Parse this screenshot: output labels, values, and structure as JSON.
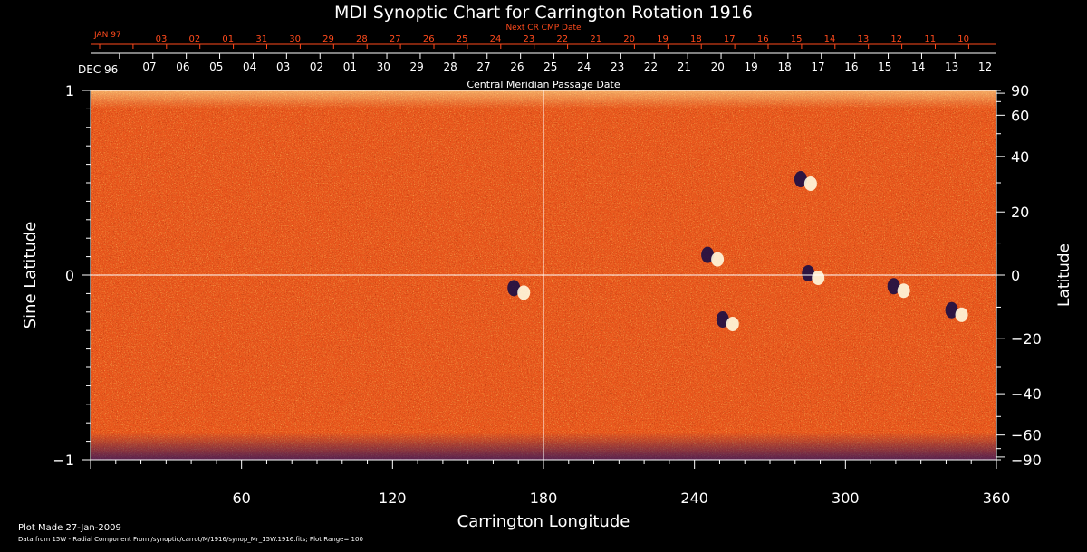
{
  "chart_data": {
    "type": "heatmap",
    "title": "MDI Synoptic Chart for Carrington Rotation 1916",
    "xlabel": "Carrington Longitude",
    "ylabel_left": "Sine Latitude",
    "ylabel_right": "Latitude",
    "xlim": [
      0,
      360
    ],
    "ylim": [
      -1,
      1
    ],
    "x_ticks": [
      60,
      120,
      180,
      240,
      300,
      360
    ],
    "y_ticks_left": [
      {
        "value": 1,
        "label": "1"
      },
      {
        "value": 0,
        "label": "0"
      },
      {
        "value": -1,
        "label": "−1"
      }
    ],
    "y_ticks_right": [
      90,
      60,
      40,
      20,
      0,
      -20,
      -40,
      -60,
      -90
    ],
    "cmp_axis_label": "Central Meridian Passage Date",
    "cmp_month_label": "DEC 96",
    "cmp_dates": [
      "07",
      "06",
      "05",
      "04",
      "03",
      "02",
      "01",
      "30",
      "29",
      "28",
      "27",
      "26",
      "25",
      "24",
      "23",
      "22",
      "21",
      "20",
      "19",
      "18",
      "17",
      "16",
      "15",
      "14",
      "13",
      "12"
    ],
    "next_cmp_axis_label": "Next CR CMP Date",
    "next_month_label": "JAN 97",
    "next_cmp_dates": [
      "03",
      "02",
      "01",
      "31",
      "30",
      "29",
      "28",
      "27",
      "26",
      "25",
      "24",
      "23",
      "22",
      "21",
      "20",
      "19",
      "18",
      "17",
      "16",
      "15",
      "14",
      "13",
      "12",
      "11",
      "10"
    ],
    "colors": {
      "background": "#000000",
      "field_base": "#e8561c",
      "positive_polarity": "#fffbe0",
      "negative_polarity": "#1a0d45",
      "next_axis": "#ff4a1c",
      "axes": "#ffffff"
    },
    "grid": false,
    "crosshair": {
      "longitude": 180,
      "sine_latitude": 0
    },
    "active_regions": [
      {
        "name": "region-1",
        "lon": 170,
        "sinlat": -0.08
      },
      {
        "name": "region-2",
        "lon": 247,
        "sinlat": 0.1
      },
      {
        "name": "region-3",
        "lon": 287,
        "sinlat": 0.0
      },
      {
        "name": "region-4",
        "lon": 284,
        "sinlat": 0.51
      },
      {
        "name": "region-5",
        "lon": 321,
        "sinlat": -0.07
      },
      {
        "name": "region-6",
        "lon": 344,
        "sinlat": -0.2
      },
      {
        "name": "region-7",
        "lon": 253,
        "sinlat": -0.25
      }
    ]
  },
  "footer": {
    "plot_made": "Plot Made 27-Jan-2009",
    "data_source": "Data from 15W - Radial Component From /synoptic/carrot/M/1916/synop_Mr_15W.1916.fits; Plot Range= 100"
  }
}
